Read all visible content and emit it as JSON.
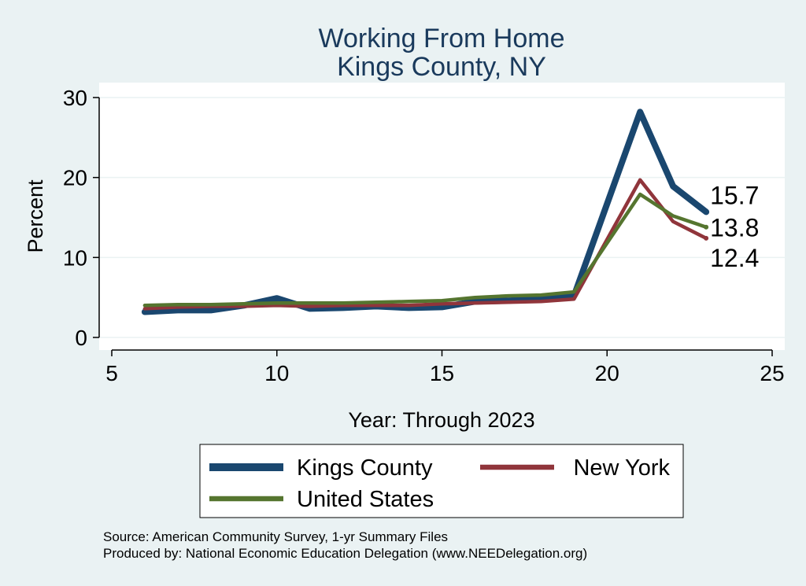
{
  "chart_data": {
    "type": "line",
    "title": [
      "Working From Home",
      "Kings County, NY"
    ],
    "xlabel": "Year: Through 2023",
    "ylabel": "Percent",
    "xlim": [
      5,
      25
    ],
    "ylim": [
      0,
      30
    ],
    "x_ticks": [
      5,
      10,
      15,
      20,
      25
    ],
    "y_ticks": [
      0,
      10,
      20,
      30
    ],
    "grid": "horizontal",
    "legend_placement": "bottom",
    "x": [
      6,
      7,
      8,
      9,
      10,
      11,
      12,
      13,
      14,
      15,
      16,
      17,
      18,
      19,
      21,
      22,
      23
    ],
    "series": [
      {
        "name": "Kings County",
        "color": "#1a476f",
        "values": [
          3.2,
          3.4,
          3.4,
          4.0,
          4.9,
          3.6,
          3.7,
          3.9,
          3.7,
          3.8,
          4.5,
          4.6,
          4.8,
          5.2,
          28.2,
          18.9,
          15.7
        ],
        "end_label": "15.7"
      },
      {
        "name": "New York",
        "color": "#90353b",
        "values": [
          3.6,
          3.8,
          3.9,
          3.9,
          4.0,
          3.9,
          4.0,
          4.0,
          4.0,
          4.2,
          4.3,
          4.4,
          4.5,
          4.8,
          19.7,
          14.5,
          12.4
        ],
        "end_label": "12.4"
      },
      {
        "name": "United States",
        "color": "#55752f",
        "values": [
          4.0,
          4.1,
          4.1,
          4.2,
          4.3,
          4.3,
          4.3,
          4.4,
          4.5,
          4.6,
          5.0,
          5.2,
          5.3,
          5.7,
          17.9,
          15.2,
          13.8
        ],
        "end_label": "13.8"
      }
    ],
    "notes": [
      "Source: American Community Survey, 1-yr Summary Files",
      "Produced by: National Economic Education Delegation (www.NEEDelegation.org)"
    ]
  }
}
